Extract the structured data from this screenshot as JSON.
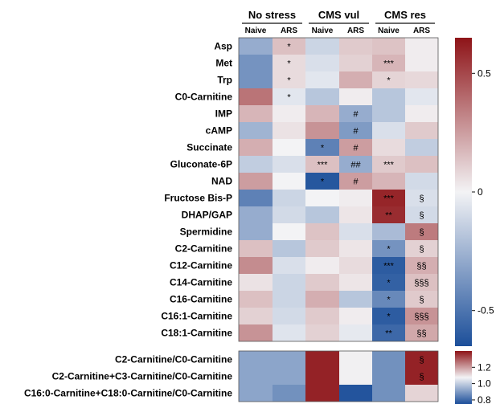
{
  "chart_data": [
    {
      "type": "heatmap",
      "groups": [
        "No stress",
        "CMS vul",
        "CMS res"
      ],
      "columns": [
        "Naive",
        "ARS",
        "Naive",
        "ARS",
        "Naive",
        "ARS"
      ],
      "rows": [
        "Asp",
        "Met",
        "Trp",
        "C0-Carnitine",
        "IMP",
        "cAMP",
        "Succinate",
        "Gluconate-6P",
        "NAD",
        "Fructose Bis-P",
        "DHAP/GAP",
        "Spermidine",
        "C2-Carnitine",
        "C12-Carnitine",
        "C14-Carnitine",
        "C16-Carnitine",
        "C16:1-Carnitine",
        "C18:1-Carnitine"
      ],
      "values": [
        [
          -0.28,
          0.15,
          -0.12,
          0.12,
          0.14,
          0.02
        ],
        [
          -0.38,
          0.07,
          -0.08,
          0.1,
          0.18,
          0.02
        ],
        [
          -0.38,
          0.07,
          -0.05,
          0.2,
          0.09,
          0.08
        ],
        [
          0.37,
          -0.05,
          -0.18,
          0.02,
          -0.18,
          -0.05
        ],
        [
          0.18,
          0.02,
          0.18,
          -0.28,
          -0.18,
          0.02
        ],
        [
          -0.25,
          0.05,
          0.28,
          -0.35,
          -0.08,
          0.12
        ],
        [
          0.2,
          0.0,
          -0.45,
          0.25,
          0.07,
          -0.15
        ],
        [
          -0.15,
          -0.08,
          0.15,
          -0.28,
          0.12,
          0.15
        ],
        [
          0.25,
          0.0,
          -0.62,
          0.25,
          0.18,
          -0.1
        ],
        [
          -0.45,
          -0.12,
          0.0,
          0.02,
          0.6,
          -0.08
        ],
        [
          -0.28,
          -0.1,
          -0.18,
          0.04,
          0.58,
          -0.1
        ],
        [
          -0.28,
          0.0,
          0.14,
          -0.08,
          -0.22,
          0.35
        ],
        [
          0.15,
          -0.18,
          0.12,
          0.04,
          -0.38,
          0.1
        ],
        [
          0.3,
          -0.08,
          0.02,
          0.07,
          -0.6,
          0.2
        ],
        [
          0.05,
          -0.12,
          0.12,
          0.04,
          -0.58,
          0.15
        ],
        [
          0.15,
          -0.12,
          0.2,
          -0.18,
          -0.42,
          0.12
        ],
        [
          0.1,
          -0.1,
          0.12,
          0.02,
          -0.6,
          0.28
        ],
        [
          0.28,
          -0.06,
          0.1,
          -0.04,
          -0.55,
          0.22
        ]
      ],
      "annotations": [
        [
          "",
          "*",
          "",
          "",
          "",
          ""
        ],
        [
          "",
          "*",
          "",
          "",
          "***",
          ""
        ],
        [
          "",
          "*",
          "",
          "",
          "*",
          ""
        ],
        [
          "",
          "*",
          "",
          "",
          "",
          ""
        ],
        [
          "",
          "",
          "",
          "#",
          "",
          ""
        ],
        [
          "",
          "",
          "",
          "#",
          "",
          ""
        ],
        [
          "",
          "",
          "*",
          "#",
          "",
          ""
        ],
        [
          "",
          "",
          "***",
          "##",
          "***",
          ""
        ],
        [
          "",
          "",
          "*",
          "#",
          "",
          ""
        ],
        [
          "",
          "",
          "",
          "",
          "***",
          "§"
        ],
        [
          "",
          "",
          "",
          "",
          "**",
          "§"
        ],
        [
          "",
          "",
          "",
          "",
          "",
          "§"
        ],
        [
          "",
          "",
          "",
          "",
          "*",
          "§"
        ],
        [
          "",
          "",
          "",
          "",
          "***",
          "§§"
        ],
        [
          "",
          "",
          "",
          "",
          "*",
          "§§§"
        ],
        [
          "",
          "",
          "",
          "",
          "*",
          "§"
        ],
        [
          "",
          "",
          "",
          "",
          "*",
          "§§§"
        ],
        [
          "",
          "",
          "",
          "",
          "**",
          "§§"
        ]
      ],
      "colorbar": {
        "range": [
          -0.65,
          0.65
        ],
        "ticks": [
          0.5,
          0,
          -0.5
        ],
        "tick_labels": [
          "0.5",
          "0",
          "-0.5"
        ],
        "colors": [
          "#1c4f9a",
          "#f3f3f5",
          "#8e1418"
        ]
      }
    },
    {
      "type": "heatmap",
      "rows": [
        "C2-Carnitine/C0-Carnitine",
        "C2-Carnitine+C3-Carnitine/C0-Carnitine",
        "C16:0-Carnitine+C18:0-Carnitine/C0-Carnitine"
      ],
      "values": [
        [
          0.92,
          0.92,
          1.38,
          1.08,
          0.88,
          1.38
        ],
        [
          0.92,
          0.92,
          1.38,
          1.08,
          0.88,
          1.38
        ],
        [
          0.92,
          0.88,
          1.38,
          0.76,
          0.88,
          1.12
        ]
      ],
      "annotations": [
        [
          "",
          "",
          "",
          "",
          "",
          "§"
        ],
        [
          "",
          "",
          "",
          "",
          "",
          "§"
        ],
        [
          "",
          "",
          "",
          "",
          "",
          ""
        ]
      ],
      "colorbar": {
        "range": [
          0.75,
          1.4
        ],
        "ticks": [
          1.2,
          1.0,
          0.8
        ],
        "tick_labels": [
          "1.2",
          "1.0",
          "0.8"
        ],
        "colors": [
          "#1c4f9a",
          "#f3f3f5",
          "#8e1418"
        ]
      }
    }
  ]
}
